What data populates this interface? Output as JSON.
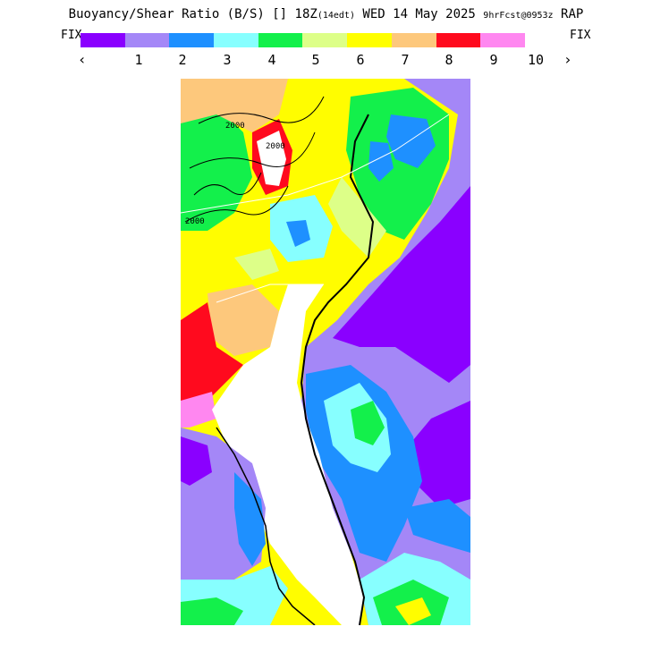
{
  "header": {
    "title_main": "Buoyancy/Shear Ratio (B/S) [] 18Z",
    "title_edt": "(14edt)",
    "title_date": "WED 14 May 2025",
    "title_fcst": "9hrFcst@0953z",
    "title_model": "RAP"
  },
  "legend": {
    "fix_left": "FIX",
    "fix_right": "FIX",
    "prev_arrow": "‹",
    "next_arrow": "›",
    "colors": [
      "#8a00ff",
      "#a487f7",
      "#1e90ff",
      "#87ffff",
      "#13f04b",
      "#ddff88",
      "#ffff00",
      "#fdc87c",
      "#ff0a1e",
      "#ff87f0"
    ],
    "ticks": [
      "1",
      "2",
      "3",
      "4",
      "5",
      "6",
      "7",
      "8",
      "9",
      "10"
    ]
  },
  "map": {
    "contour_labels": [
      "2000",
      "2000",
      "2000"
    ]
  }
}
